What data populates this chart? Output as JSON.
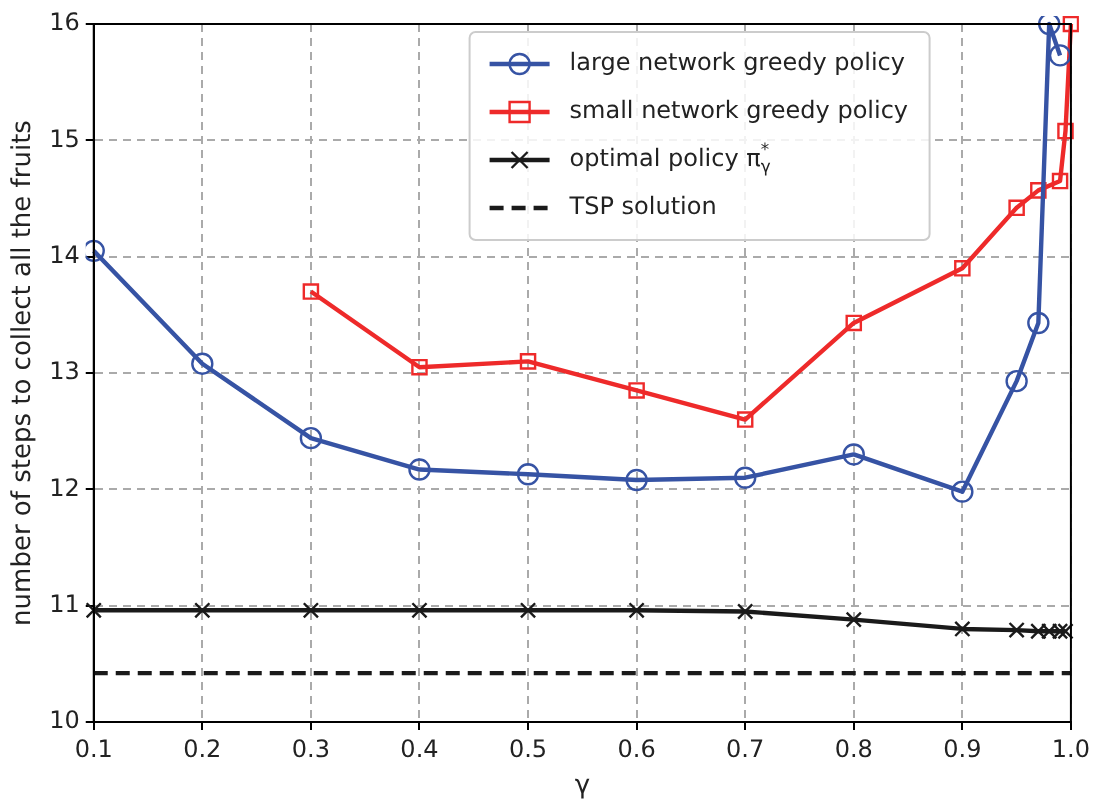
{
  "chart_data": {
    "type": "line",
    "xlabel": "γ",
    "ylabel": "number of steps to collect all the fruits",
    "xlim": [
      0.1,
      1.0
    ],
    "xticks": [
      0.1,
      0.2,
      0.3,
      0.4,
      0.5,
      0.6,
      0.7,
      0.8,
      0.9,
      {
        "value": 1.0,
        "label": "1.0"
      }
    ],
    "ylim": [
      10,
      16
    ],
    "yticks": [
      10,
      11,
      12,
      13,
      14,
      15,
      16
    ],
    "grid": true,
    "legend": "top",
    "series": [
      {
        "name": "large network greedy policy",
        "color": "#3653a4",
        "marker": "circle",
        "x": [
          0.1,
          0.2,
          0.3,
          0.4,
          0.5,
          0.6,
          0.7,
          0.8,
          0.9,
          0.95,
          0.97,
          0.98,
          0.99
        ],
        "values": [
          14.05,
          13.08,
          12.44,
          12.17,
          12.13,
          12.08,
          12.1,
          12.3,
          11.98,
          12.93,
          13.43,
          16,
          15.73
        ]
      },
      {
        "name": "small network greedy policy",
        "color": "#ee2a2a",
        "marker": "square",
        "x": [
          0.3,
          0.4,
          0.5,
          0.6,
          0.7,
          0.8,
          0.9,
          0.95,
          0.97,
          0.99,
          0.995,
          1.0
        ],
        "values": [
          13.7,
          13.05,
          13.1,
          12.85,
          12.6,
          13.43,
          13.9,
          14.42,
          14.57,
          14.65,
          15.08,
          16
        ]
      },
      {
        "name": "optimal policy π$_{γ}$$^{*}$",
        "color": "#1a1a1a",
        "marker": "cross",
        "x": [
          0.1,
          0.2,
          0.3,
          0.4,
          0.5,
          0.6,
          0.7,
          0.8,
          0.9,
          0.95,
          0.97,
          0.98,
          0.99,
          0.995
        ],
        "values": [
          10.96,
          10.96,
          10.96,
          10.96,
          10.96,
          10.96,
          10.95,
          10.88,
          10.8,
          10.79,
          10.78,
          10.78,
          10.78,
          10.78
        ]
      }
    ],
    "ref_lines": [
      {
        "axis": "y",
        "value": 10.42,
        "label": "TSP solution",
        "color": "#1a1a1a",
        "line_style": "dashed"
      }
    ]
  }
}
